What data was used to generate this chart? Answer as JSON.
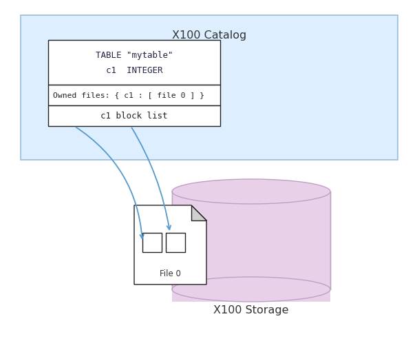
{
  "title_catalog": "X100 Catalog",
  "title_storage": "X100 Storage",
  "catalog_bg": "#ddeeff",
  "catalog_border": "#99bbdd",
  "storage_bg": "#e8d0e8",
  "storage_border": "#c0a0c0",
  "table_header_text1": "TABLE \"mytable\"",
  "table_header_text2": "c1  INTEGER",
  "owned_files_text": "Owned files: { c1 : [ file 0 ] }",
  "block_list_text": "c1 block list",
  "file_label": "File 0",
  "arrow_color": "#5599cc",
  "box_bg": "#ffffff",
  "box_border": "#222222",
  "font_mono": "monospace",
  "font_sans": "DejaVu Sans",
  "fig_w": 6.06,
  "fig_h": 5.11,
  "dpi": 100
}
